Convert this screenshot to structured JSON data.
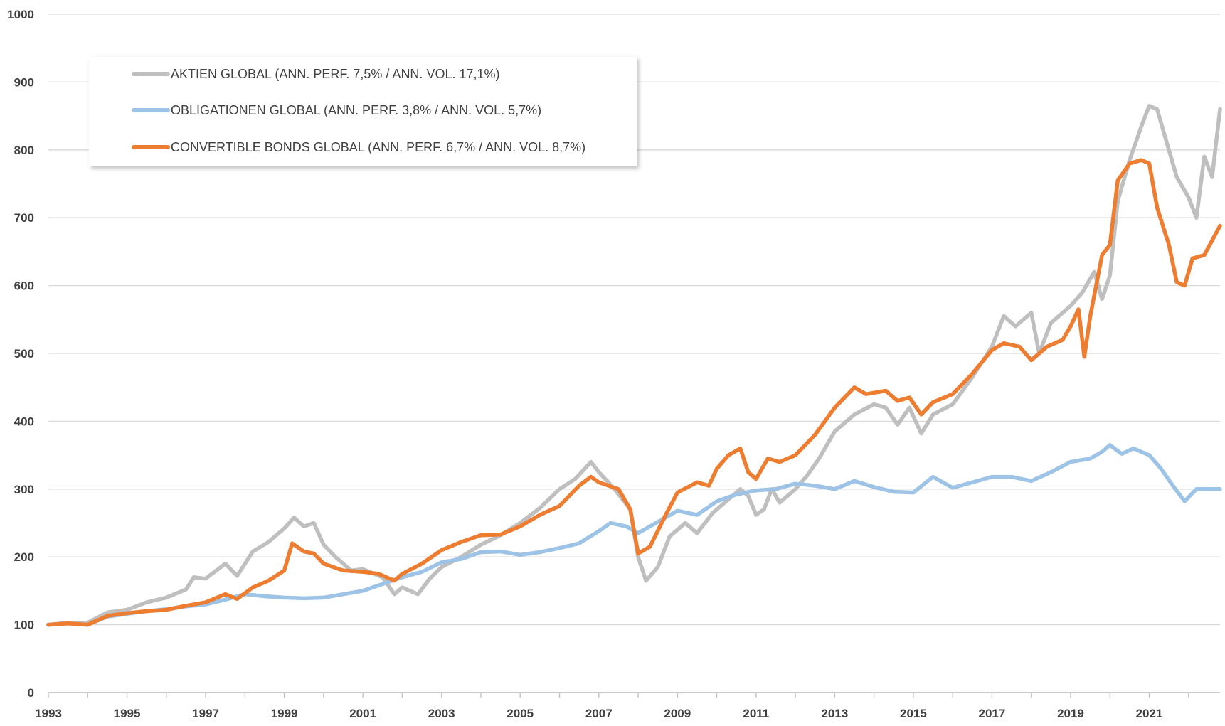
{
  "chart_data": {
    "type": "line",
    "title": "",
    "xlabel": "",
    "ylabel": "",
    "xlim": [
      1993,
      2022.8
    ],
    "ylim": [
      0,
      1000
    ],
    "x_ticks": [
      "1993",
      "1995",
      "1997",
      "1999",
      "2001",
      "2003",
      "2005",
      "2007",
      "2009",
      "2011",
      "2013",
      "2015",
      "2017",
      "2019",
      "2021"
    ],
    "y_ticks": [
      "0",
      "100",
      "200",
      "300",
      "400",
      "500",
      "600",
      "700",
      "800",
      "900",
      "1000"
    ],
    "grid": "horizontal",
    "legend_position": "top-left",
    "series": [
      {
        "name": "AKTIEN GLOBAL (ANN. PERF. 7,5% / ANN. VOL. 17,1%)",
        "color": "#bfbfbf",
        "points": [
          [
            1993.0,
            100
          ],
          [
            1993.5,
            103
          ],
          [
            1994.0,
            103
          ],
          [
            1994.5,
            118
          ],
          [
            1995.0,
            122
          ],
          [
            1995.5,
            133
          ],
          [
            1996.0,
            140
          ],
          [
            1996.5,
            152
          ],
          [
            1996.7,
            170
          ],
          [
            1997.0,
            168
          ],
          [
            1997.5,
            190
          ],
          [
            1997.8,
            172
          ],
          [
            1998.2,
            208
          ],
          [
            1998.6,
            222
          ],
          [
            1999.0,
            242
          ],
          [
            1999.25,
            258
          ],
          [
            1999.5,
            245
          ],
          [
            1999.75,
            250
          ],
          [
            2000.0,
            218
          ],
          [
            2000.3,
            200
          ],
          [
            2000.7,
            180
          ],
          [
            2001.0,
            182
          ],
          [
            2001.5,
            170
          ],
          [
            2001.8,
            145
          ],
          [
            2002.0,
            155
          ],
          [
            2002.4,
            145
          ],
          [
            2002.7,
            168
          ],
          [
            2003.0,
            185
          ],
          [
            2003.5,
            200
          ],
          [
            2004.0,
            218
          ],
          [
            2004.5,
            232
          ],
          [
            2005.0,
            250
          ],
          [
            2005.5,
            272
          ],
          [
            2006.0,
            300
          ],
          [
            2006.4,
            315
          ],
          [
            2006.8,
            340
          ],
          [
            2007.0,
            325
          ],
          [
            2007.4,
            300
          ],
          [
            2007.8,
            270
          ],
          [
            2008.0,
            200
          ],
          [
            2008.2,
            165
          ],
          [
            2008.5,
            185
          ],
          [
            2008.8,
            230
          ],
          [
            2009.2,
            250
          ],
          [
            2009.5,
            235
          ],
          [
            2009.9,
            265
          ],
          [
            2010.3,
            285
          ],
          [
            2010.6,
            300
          ],
          [
            2010.8,
            290
          ],
          [
            2011.0,
            262
          ],
          [
            2011.2,
            270
          ],
          [
            2011.4,
            300
          ],
          [
            2011.6,
            280
          ],
          [
            2012.0,
            300
          ],
          [
            2012.3,
            320
          ],
          [
            2012.6,
            345
          ],
          [
            2013.0,
            385
          ],
          [
            2013.5,
            410
          ],
          [
            2014.0,
            425
          ],
          [
            2014.3,
            420
          ],
          [
            2014.6,
            395
          ],
          [
            2014.9,
            420
          ],
          [
            2015.2,
            382
          ],
          [
            2015.5,
            410
          ],
          [
            2016.0,
            425
          ],
          [
            2016.5,
            465
          ],
          [
            2017.0,
            510
          ],
          [
            2017.3,
            555
          ],
          [
            2017.6,
            540
          ],
          [
            2018.0,
            560
          ],
          [
            2018.2,
            500
          ],
          [
            2018.5,
            545
          ],
          [
            2018.8,
            560
          ],
          [
            2019.0,
            570
          ],
          [
            2019.3,
            590
          ],
          [
            2019.6,
            620
          ],
          [
            2019.8,
            580
          ],
          [
            2020.0,
            615
          ],
          [
            2020.2,
            725
          ],
          [
            2020.5,
            785
          ],
          [
            2020.8,
            835
          ],
          [
            2021.0,
            865
          ],
          [
            2021.2,
            860
          ],
          [
            2021.4,
            820
          ],
          [
            2021.7,
            760
          ],
          [
            2022.0,
            730
          ],
          [
            2022.2,
            700
          ],
          [
            2022.4,
            790
          ],
          [
            2022.6,
            760
          ],
          [
            2022.8,
            860
          ]
        ]
      },
      {
        "name": "OBLIGATIONEN GLOBAL (ANN. PERF. 3,8% / ANN. VOL. 5,7%)",
        "color": "#9dc3e6",
        "points": [
          [
            1993.0,
            100
          ],
          [
            1993.5,
            102
          ],
          [
            1994.0,
            100
          ],
          [
            1994.5,
            112
          ],
          [
            1995.0,
            116
          ],
          [
            1995.5,
            120
          ],
          [
            1996.0,
            123
          ],
          [
            1996.5,
            127
          ],
          [
            1997.0,
            130
          ],
          [
            1997.5,
            137
          ],
          [
            1998.0,
            145
          ],
          [
            1998.5,
            142
          ],
          [
            1999.0,
            140
          ],
          [
            1999.5,
            139
          ],
          [
            2000.0,
            140
          ],
          [
            2000.5,
            145
          ],
          [
            2001.0,
            150
          ],
          [
            2001.5,
            160
          ],
          [
            2002.0,
            170
          ],
          [
            2002.5,
            178
          ],
          [
            2003.0,
            192
          ],
          [
            2003.5,
            197
          ],
          [
            2004.0,
            207
          ],
          [
            2004.5,
            208
          ],
          [
            2005.0,
            203
          ],
          [
            2005.5,
            207
          ],
          [
            2006.0,
            213
          ],
          [
            2006.5,
            220
          ],
          [
            2007.0,
            238
          ],
          [
            2007.3,
            250
          ],
          [
            2007.7,
            245
          ],
          [
            2008.0,
            235
          ],
          [
            2008.3,
            245
          ],
          [
            2008.7,
            258
          ],
          [
            2009.0,
            268
          ],
          [
            2009.5,
            262
          ],
          [
            2010.0,
            282
          ],
          [
            2010.5,
            292
          ],
          [
            2011.0,
            298
          ],
          [
            2011.5,
            300
          ],
          [
            2012.0,
            308
          ],
          [
            2012.5,
            305
          ],
          [
            2013.0,
            300
          ],
          [
            2013.5,
            312
          ],
          [
            2014.0,
            303
          ],
          [
            2014.5,
            296
          ],
          [
            2015.0,
            295
          ],
          [
            2015.5,
            318
          ],
          [
            2016.0,
            302
          ],
          [
            2016.5,
            310
          ],
          [
            2017.0,
            318
          ],
          [
            2017.5,
            318
          ],
          [
            2018.0,
            312
          ],
          [
            2018.5,
            325
          ],
          [
            2019.0,
            340
          ],
          [
            2019.5,
            345
          ],
          [
            2019.8,
            355
          ],
          [
            2020.0,
            365
          ],
          [
            2020.3,
            352
          ],
          [
            2020.6,
            360
          ],
          [
            2021.0,
            350
          ],
          [
            2021.3,
            330
          ],
          [
            2021.6,
            305
          ],
          [
            2021.9,
            282
          ],
          [
            2022.2,
            300
          ],
          [
            2022.5,
            300
          ],
          [
            2022.8,
            300
          ]
        ]
      },
      {
        "name": "CONVERTIBLE BONDS GLOBAL (ANN. PERF. 6,7% / ANN. VOL. 8,7%)",
        "color": "#ed7d31",
        "points": [
          [
            1993.0,
            100
          ],
          [
            1993.5,
            102
          ],
          [
            1994.0,
            100
          ],
          [
            1994.5,
            113
          ],
          [
            1995.0,
            117
          ],
          [
            1995.5,
            120
          ],
          [
            1996.0,
            122
          ],
          [
            1996.5,
            128
          ],
          [
            1997.0,
            133
          ],
          [
            1997.5,
            145
          ],
          [
            1997.8,
            138
          ],
          [
            1998.2,
            155
          ],
          [
            1998.6,
            165
          ],
          [
            1999.0,
            180
          ],
          [
            1999.2,
            220
          ],
          [
            1999.5,
            208
          ],
          [
            1999.75,
            205
          ],
          [
            2000.0,
            190
          ],
          [
            2000.5,
            180
          ],
          [
            2001.0,
            178
          ],
          [
            2001.4,
            175
          ],
          [
            2001.8,
            165
          ],
          [
            2002.0,
            175
          ],
          [
            2002.5,
            190
          ],
          [
            2003.0,
            210
          ],
          [
            2003.5,
            222
          ],
          [
            2004.0,
            232
          ],
          [
            2004.5,
            233
          ],
          [
            2005.0,
            245
          ],
          [
            2005.5,
            262
          ],
          [
            2006.0,
            275
          ],
          [
            2006.5,
            305
          ],
          [
            2006.8,
            318
          ],
          [
            2007.0,
            310
          ],
          [
            2007.5,
            300
          ],
          [
            2007.8,
            270
          ],
          [
            2008.0,
            205
          ],
          [
            2008.3,
            215
          ],
          [
            2008.7,
            262
          ],
          [
            2009.0,
            295
          ],
          [
            2009.5,
            310
          ],
          [
            2009.8,
            305
          ],
          [
            2010.0,
            330
          ],
          [
            2010.3,
            350
          ],
          [
            2010.6,
            360
          ],
          [
            2010.8,
            325
          ],
          [
            2011.0,
            315
          ],
          [
            2011.3,
            345
          ],
          [
            2011.6,
            340
          ],
          [
            2012.0,
            350
          ],
          [
            2012.5,
            380
          ],
          [
            2013.0,
            420
          ],
          [
            2013.5,
            450
          ],
          [
            2013.8,
            440
          ],
          [
            2014.3,
            445
          ],
          [
            2014.6,
            430
          ],
          [
            2014.9,
            435
          ],
          [
            2015.2,
            410
          ],
          [
            2015.5,
            428
          ],
          [
            2016.0,
            440
          ],
          [
            2016.5,
            470
          ],
          [
            2017.0,
            505
          ],
          [
            2017.3,
            515
          ],
          [
            2017.7,
            510
          ],
          [
            2018.0,
            490
          ],
          [
            2018.4,
            510
          ],
          [
            2018.8,
            520
          ],
          [
            2019.0,
            540
          ],
          [
            2019.2,
            565
          ],
          [
            2019.35,
            495
          ],
          [
            2019.5,
            555
          ],
          [
            2019.8,
            645
          ],
          [
            2020.0,
            660
          ],
          [
            2020.2,
            755
          ],
          [
            2020.5,
            780
          ],
          [
            2020.8,
            785
          ],
          [
            2021.0,
            780
          ],
          [
            2021.2,
            715
          ],
          [
            2021.5,
            660
          ],
          [
            2021.7,
            605
          ],
          [
            2021.9,
            600
          ],
          [
            2022.1,
            640
          ],
          [
            2022.4,
            645
          ],
          [
            2022.8,
            688
          ]
        ]
      }
    ]
  }
}
